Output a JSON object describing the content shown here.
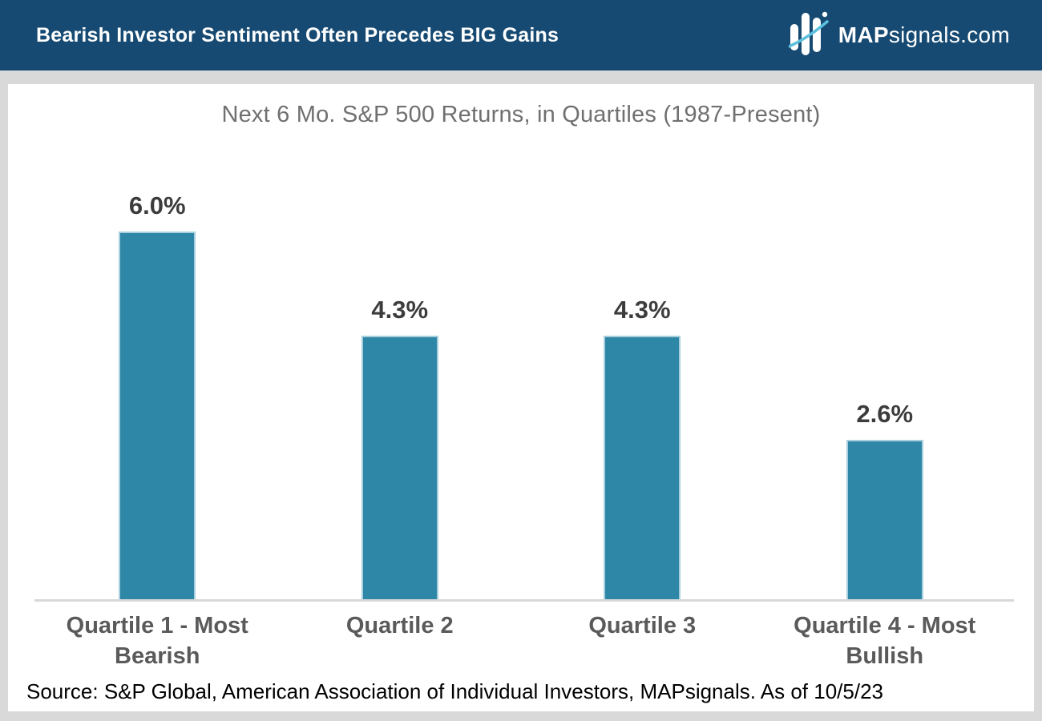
{
  "header": {
    "title": "Bearish Investor Sentiment Often Precedes BIG Gains",
    "background_color": "#164a72",
    "logo": {
      "brand_bold": "MAP",
      "brand_rest": "signals.com",
      "icon": "bar-chart-swoosh-icon",
      "swoosh_color": "#5bc0dc"
    }
  },
  "chart_data": {
    "type": "bar",
    "title": "Next 6 Mo. S&P 500 Returns, in Quartiles (1987-Present)",
    "categories": [
      "Quartile 1 - Most Bearish",
      "Quartile 2",
      "Quartile 3",
      "Quartile 4 - Most Bullish"
    ],
    "values": [
      6.0,
      4.3,
      4.3,
      2.6
    ],
    "labels": [
      "6.0%",
      "4.3%",
      "4.3%",
      "2.6%"
    ],
    "unit": "%",
    "ylim": [
      0,
      8.4
    ],
    "xlabel": "",
    "ylabel": "",
    "grid": false,
    "legend": false,
    "bar_color": "#2e87a6",
    "bar_border_color": "#a9cfdf"
  },
  "footer": {
    "source": "Source: S&P Global, American Association of Individual Investors, MAPsignals. As of 10/5/23"
  }
}
